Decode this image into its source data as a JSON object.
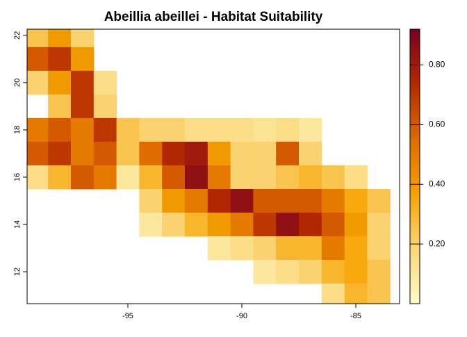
{
  "chart_data": {
    "type": "raster",
    "title": "Abeillia abeillei - Habitat Suitability",
    "x": [
      -99,
      -98,
      -97,
      -96,
      -95,
      -94,
      -93,
      -92,
      -91,
      -90,
      -89,
      -88,
      -87,
      -86,
      -85,
      -84
    ],
    "y": [
      22,
      21,
      20,
      19,
      18,
      17,
      16,
      15,
      14,
      13,
      12,
      11
    ],
    "values": [
      [
        0.25,
        0.4,
        0.2,
        null,
        null,
        null,
        null,
        null,
        null,
        null,
        null,
        null,
        null,
        null,
        null,
        null
      ],
      [
        0.6,
        0.7,
        0.4,
        null,
        null,
        null,
        null,
        null,
        null,
        null,
        null,
        null,
        null,
        null,
        null,
        null
      ],
      [
        0.2,
        0.4,
        0.7,
        0.15,
        null,
        null,
        null,
        null,
        null,
        null,
        null,
        null,
        null,
        null,
        null,
        null
      ],
      [
        null,
        0.25,
        0.7,
        0.2,
        null,
        null,
        null,
        null,
        null,
        null,
        null,
        null,
        null,
        null,
        null,
        null
      ],
      [
        0.5,
        0.6,
        0.5,
        0.7,
        0.25,
        0.2,
        0.2,
        0.15,
        0.15,
        0.15,
        0.12,
        0.15,
        0.1,
        null,
        null,
        null
      ],
      [
        0.6,
        0.7,
        0.5,
        0.6,
        0.25,
        0.55,
        0.75,
        0.8,
        0.4,
        0.2,
        0.2,
        0.6,
        0.2,
        null,
        null,
        null
      ],
      [
        0.15,
        0.3,
        0.6,
        0.5,
        0.1,
        0.3,
        0.6,
        0.85,
        0.5,
        0.2,
        0.2,
        0.25,
        0.3,
        0.25,
        0.15,
        null
      ],
      [
        null,
        null,
        null,
        null,
        null,
        0.2,
        0.4,
        0.5,
        0.75,
        0.85,
        0.6,
        0.6,
        0.6,
        0.5,
        0.35,
        0.25
      ],
      [
        null,
        null,
        null,
        null,
        null,
        0.1,
        0.2,
        0.3,
        0.4,
        0.5,
        0.7,
        0.85,
        0.75,
        0.6,
        0.4,
        0.2
      ],
      [
        null,
        null,
        null,
        null,
        null,
        null,
        null,
        null,
        0.1,
        0.15,
        0.2,
        0.3,
        0.3,
        0.5,
        0.35,
        0.2
      ],
      [
        null,
        null,
        null,
        null,
        null,
        null,
        null,
        null,
        null,
        null,
        0.1,
        0.15,
        0.2,
        0.3,
        0.35,
        0.25
      ],
      [
        null,
        null,
        null,
        null,
        null,
        null,
        null,
        null,
        null,
        null,
        null,
        null,
        null,
        0.15,
        0.3,
        0.25
      ]
    ],
    "xlim": [
      -99.42,
      -83.08
    ],
    "ylim": [
      10.65,
      22.26
    ],
    "xticks": [
      -95,
      -90,
      -85
    ],
    "yticks": [
      12,
      14,
      16,
      18,
      20,
      22
    ],
    "zlim": [
      0,
      0.92
    ],
    "zticks": [
      {
        "value": 0.2,
        "label": "0.20"
      },
      {
        "value": 0.4,
        "label": "0.40"
      },
      {
        "value": 0.6,
        "label": "0.60"
      },
      {
        "value": 0.8,
        "label": "0.80"
      }
    ],
    "colors": [
      "#fffbc8",
      "#fbd77a",
      "#f5a300",
      "#e06a00",
      "#b42a00",
      "#7a0020"
    ]
  }
}
